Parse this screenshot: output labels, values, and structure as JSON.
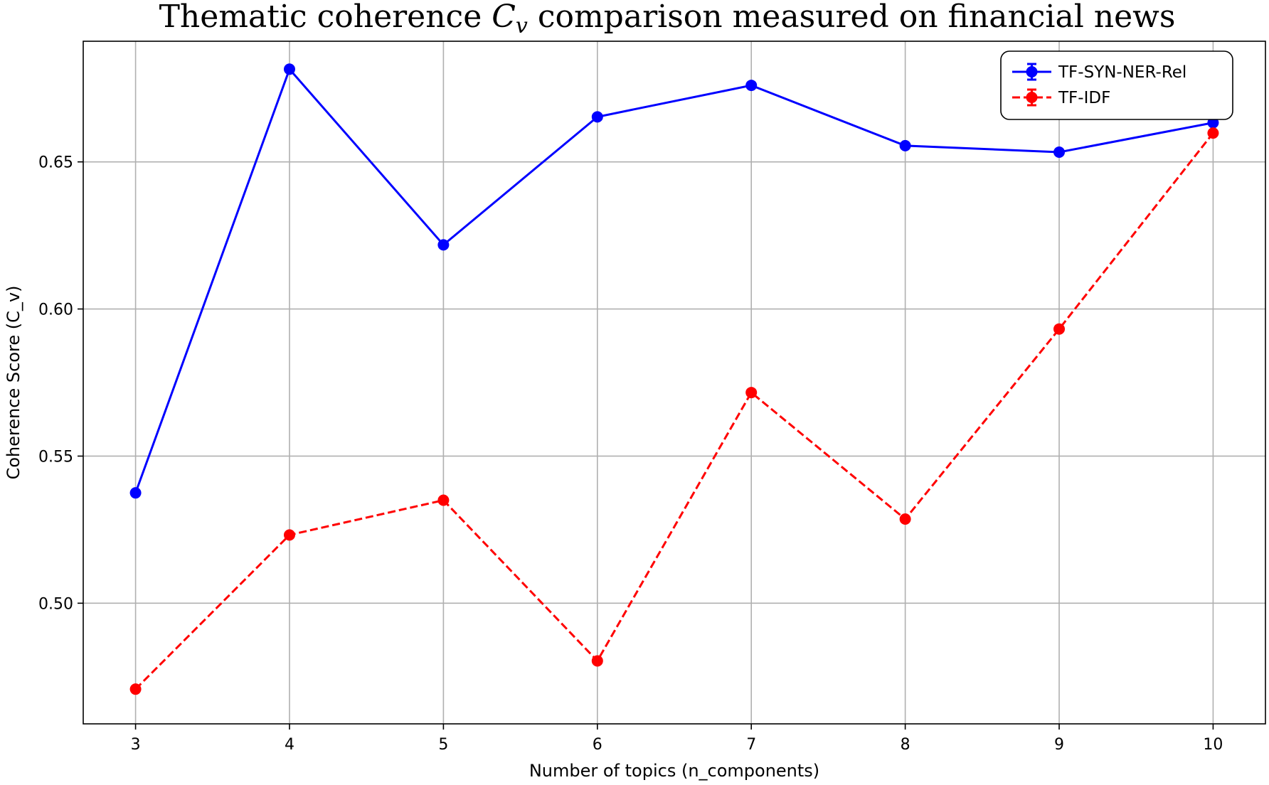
{
  "chart_data": {
    "type": "line",
    "title": "Thematic coherence C_v comparison measured on financial news",
    "title_parts": [
      "Thematic coherence ",
      "C",
      "v",
      " comparison measured on financial news"
    ],
    "xlabel": "Number of topics (n_components)",
    "ylabel": "Coherence Score (C_v)",
    "x": [
      3,
      4,
      5,
      6,
      7,
      8,
      9,
      10
    ],
    "xticks": [
      "3",
      "4",
      "5",
      "6",
      "7",
      "8",
      "9",
      "10"
    ],
    "yticks": [
      "0.50",
      "0.55",
      "0.60",
      "0.65"
    ],
    "ytick_values": [
      0.5,
      0.55,
      0.6,
      0.65
    ],
    "xlim": [
      2.66,
      10.34
    ],
    "ylim": [
      0.459,
      0.691
    ],
    "grid": true,
    "legend_position": "upper right",
    "series": [
      {
        "name": "TF-SYN-NER-Rel",
        "color": "#0000ff",
        "line_style": "solid",
        "marker": "circle",
        "values": [
          0.5375,
          0.6815,
          0.6218,
          0.6653,
          0.676,
          0.6555,
          0.6533,
          0.6633
        ]
      },
      {
        "name": "TF-IDF",
        "color": "#ff0000",
        "line_style": "dashed",
        "marker": "circle",
        "values": [
          0.4708,
          0.5232,
          0.535,
          0.4804,
          0.5716,
          0.5286,
          0.5932,
          0.6598
        ]
      }
    ]
  }
}
